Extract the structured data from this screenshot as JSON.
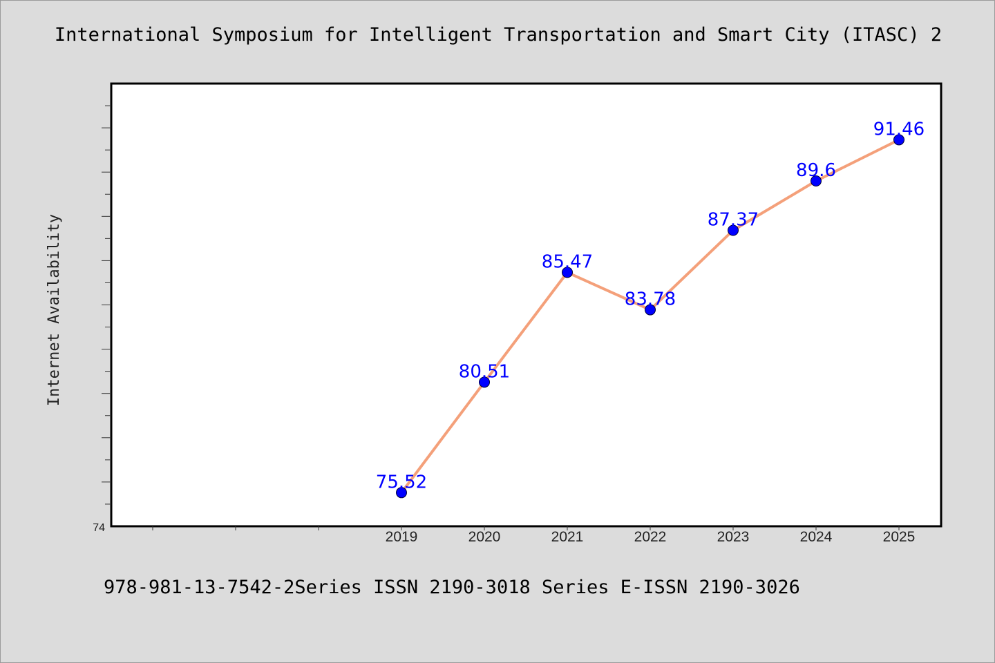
{
  "title": "International Symposium for Intelligent Transportation and Smart City (ITASC) 2",
  "footer": "978-981-13-7542-2Series ISSN 2190-3018 Series E-ISSN 2190-3026",
  "colors": {
    "background": "#dcdcdc",
    "plot_background": "#ffffff",
    "line": "#f4a07a",
    "marker": "#0000ff",
    "data_label": "#0000ff"
  },
  "chart_data": {
    "type": "line",
    "ylabel": "Internet Availability",
    "xlabel": "",
    "categories": [
      "2019",
      "2020",
      "2021",
      "2022",
      "2023",
      "2024",
      "2025"
    ],
    "values": [
      75.52,
      80.51,
      85.47,
      83.78,
      87.37,
      89.6,
      91.46
    ],
    "data_labels": [
      "75.52",
      "80.51",
      "85.47",
      "83.78",
      "87.37",
      "89.6",
      "91.46"
    ],
    "y_tick_labels": [
      "74"
    ],
    "ylim": [
      74,
      94
    ],
    "grid": false,
    "legend": "none"
  }
}
